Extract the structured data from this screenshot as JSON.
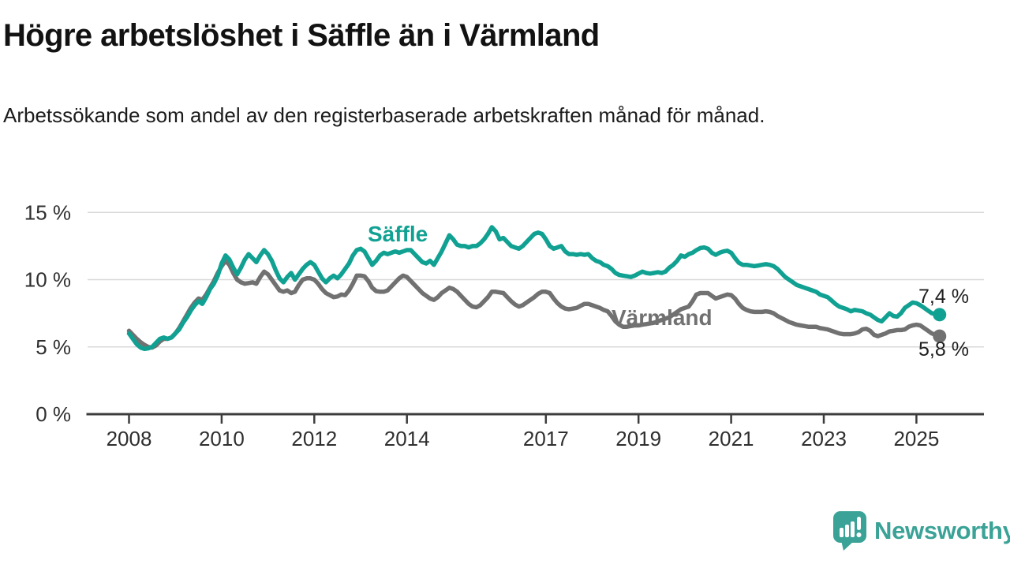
{
  "header": {
    "title": "Högre arbetslöshet i Säffle än i Värmland",
    "subtitle": "Arbetssökande som andel av den registerbaserade arbetskraften månad för månad."
  },
  "chart_data": {
    "type": "line",
    "title": "Högre arbetslöshet i Säffle än i Värmland",
    "x_start_year": 2008,
    "x_interval_months": 1,
    "x_end_label_period": "juli 2025",
    "grid": "horizontal",
    "legend_position": "inline-labels",
    "y_axis": {
      "unit": "%",
      "tick_values": [
        0,
        5,
        10,
        15
      ],
      "ticks": [
        "0 %",
        "5 %",
        "10 %",
        "15 %"
      ],
      "ylim": [
        0,
        16.5
      ]
    },
    "x_axis": {
      "tick_years": [
        "2008",
        "2010",
        "2012",
        "2014",
        "2017",
        "2019",
        "2021",
        "2023",
        "2025"
      ]
    },
    "series": [
      {
        "name": "Värmland",
        "color": "#717171",
        "end_label": "5,8 %",
        "end_value": 5.8,
        "values": [
          6.2,
          5.9,
          5.6,
          5.35,
          5.15,
          5.0,
          4.95,
          5.1,
          5.4,
          5.6,
          5.6,
          5.7,
          6.0,
          6.4,
          6.9,
          7.4,
          7.9,
          8.3,
          8.6,
          8.5,
          8.9,
          9.4,
          9.9,
          10.5,
          11.0,
          11.4,
          11.1,
          10.5,
          10.0,
          9.8,
          9.7,
          9.75,
          9.8,
          9.7,
          10.2,
          10.6,
          10.4,
          10.0,
          9.6,
          9.2,
          9.1,
          9.2,
          9.0,
          9.1,
          9.6,
          10.0,
          10.1,
          10.1,
          10.0,
          9.7,
          9.3,
          9.0,
          8.85,
          8.7,
          8.75,
          8.9,
          8.85,
          9.2,
          9.7,
          10.3,
          10.3,
          10.25,
          9.9,
          9.4,
          9.15,
          9.1,
          9.1,
          9.2,
          9.5,
          9.8,
          10.1,
          10.3,
          10.2,
          9.9,
          9.6,
          9.3,
          9.0,
          8.8,
          8.6,
          8.5,
          8.7,
          9.0,
          9.2,
          9.4,
          9.3,
          9.1,
          8.8,
          8.5,
          8.2,
          8.0,
          7.95,
          8.1,
          8.4,
          8.7,
          9.1,
          9.1,
          9.05,
          9.0,
          8.7,
          8.4,
          8.15,
          8.0,
          8.1,
          8.3,
          8.5,
          8.7,
          8.95,
          9.1,
          9.1,
          9.0,
          8.6,
          8.25,
          8.0,
          7.85,
          7.8,
          7.85,
          7.9,
          8.05,
          8.2,
          8.2,
          8.1,
          8.0,
          7.9,
          7.75,
          7.65,
          7.3,
          6.9,
          6.65,
          6.5,
          6.5,
          6.55,
          6.6,
          6.6,
          6.65,
          6.7,
          6.75,
          6.8,
          6.9,
          7.0,
          7.1,
          7.2,
          7.4,
          7.6,
          7.8,
          7.9,
          8.0,
          8.4,
          8.9,
          9.0,
          9.0,
          9.0,
          8.8,
          8.6,
          8.7,
          8.8,
          8.9,
          8.85,
          8.6,
          8.2,
          7.9,
          7.75,
          7.65,
          7.6,
          7.6,
          7.6,
          7.65,
          7.6,
          7.5,
          7.3,
          7.15,
          7.0,
          6.85,
          6.75,
          6.65,
          6.6,
          6.55,
          6.5,
          6.5,
          6.5,
          6.4,
          6.35,
          6.3,
          6.2,
          6.1,
          6.0,
          5.95,
          5.95,
          5.95,
          6.0,
          6.1,
          6.3,
          6.35,
          6.2,
          5.9,
          5.8,
          5.9,
          6.0,
          6.15,
          6.2,
          6.25,
          6.25,
          6.3,
          6.5,
          6.6,
          6.65,
          6.6,
          6.4,
          6.2,
          6.0,
          5.9,
          5.8
        ]
      },
      {
        "name": "Säffle",
        "color": "#10A192",
        "end_label": "7,4 %",
        "end_value": 7.4,
        "values": [
          6.0,
          5.6,
          5.2,
          4.95,
          4.85,
          4.9,
          5.0,
          5.3,
          5.6,
          5.7,
          5.6,
          5.7,
          6.0,
          6.3,
          6.8,
          7.2,
          7.7,
          8.1,
          8.4,
          8.2,
          8.7,
          9.3,
          9.7,
          10.3,
          11.2,
          11.8,
          11.5,
          10.9,
          10.4,
          10.9,
          11.5,
          11.9,
          11.6,
          11.3,
          11.8,
          12.2,
          11.9,
          11.4,
          10.7,
          10.1,
          9.8,
          10.2,
          10.5,
          10.0,
          10.4,
          10.8,
          11.1,
          11.3,
          11.1,
          10.6,
          10.1,
          9.8,
          10.1,
          10.3,
          10.1,
          10.4,
          10.8,
          11.2,
          11.8,
          12.2,
          12.3,
          12.1,
          11.6,
          11.1,
          11.4,
          11.8,
          12.0,
          11.9,
          12.0,
          12.1,
          12.0,
          12.1,
          12.2,
          12.2,
          11.9,
          11.6,
          11.3,
          11.2,
          11.4,
          11.1,
          11.6,
          12.1,
          12.7,
          13.3,
          13.0,
          12.6,
          12.5,
          12.5,
          12.4,
          12.5,
          12.5,
          12.7,
          13.0,
          13.4,
          13.9,
          13.6,
          13.0,
          13.1,
          12.8,
          12.5,
          12.4,
          12.3,
          12.5,
          12.8,
          13.1,
          13.4,
          13.5,
          13.4,
          13.0,
          12.5,
          12.3,
          12.4,
          12.5,
          12.1,
          11.9,
          11.9,
          11.85,
          11.9,
          11.85,
          11.9,
          11.6,
          11.4,
          11.3,
          11.1,
          11.0,
          10.8,
          10.5,
          10.35,
          10.3,
          10.25,
          10.2,
          10.3,
          10.45,
          10.6,
          10.5,
          10.45,
          10.5,
          10.55,
          10.5,
          10.6,
          10.9,
          11.1,
          11.4,
          11.8,
          11.7,
          11.9,
          12.0,
          12.2,
          12.35,
          12.4,
          12.3,
          12.0,
          11.85,
          12.0,
          12.1,
          12.15,
          12.0,
          11.6,
          11.25,
          11.1,
          11.1,
          11.05,
          11.0,
          11.05,
          11.1,
          11.15,
          11.1,
          11.0,
          10.8,
          10.5,
          10.2,
          10.0,
          9.8,
          9.6,
          9.5,
          9.4,
          9.3,
          9.2,
          9.1,
          8.9,
          8.8,
          8.7,
          8.45,
          8.2,
          8.0,
          7.9,
          7.8,
          7.65,
          7.75,
          7.7,
          7.65,
          7.5,
          7.4,
          7.2,
          7.0,
          6.9,
          7.2,
          7.5,
          7.3,
          7.25,
          7.5,
          7.9,
          8.1,
          8.3,
          8.25,
          8.1,
          7.9,
          7.7,
          7.5,
          7.45,
          7.4
        ]
      }
    ]
  },
  "colors": {
    "saffle": "#10A192",
    "varmland": "#717171",
    "grid": "#D8D8D8",
    "axis": "#3C3C3C",
    "axis_text": "#2F2F2F",
    "text": "#121212",
    "brand_teal": "#3AA296"
  },
  "footer": {
    "brand": "Newsworthy"
  }
}
